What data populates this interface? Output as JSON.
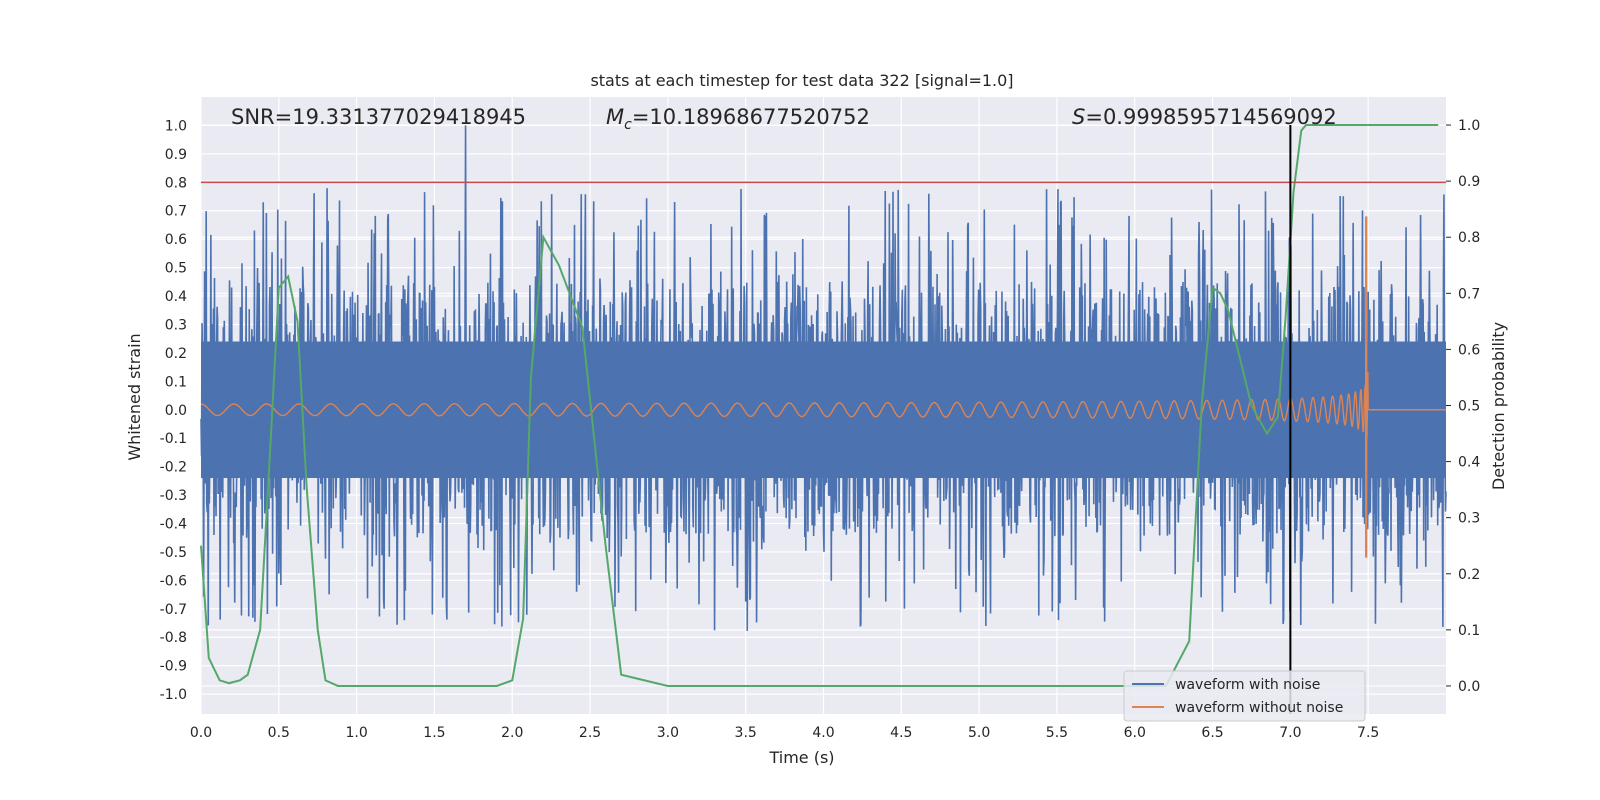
{
  "chart_data": {
    "type": "line",
    "title": "stats at each timestep for test data 322 [signal=1.0]",
    "xlabel": "Time (s)",
    "ylabel": "Whitened strain",
    "ylabel_right": "Detection probability",
    "xlim": [
      0.0,
      8.0
    ],
    "ylim": [
      -1.07,
      1.1
    ],
    "ylim_right": [
      -0.05,
      1.05
    ],
    "x_ticks": [
      "0.0",
      "0.5",
      "1.0",
      "1.5",
      "2.0",
      "2.5",
      "3.0",
      "3.5",
      "4.0",
      "4.5",
      "5.0",
      "5.5",
      "6.0",
      "6.5",
      "7.0",
      "7.5"
    ],
    "y_ticks": [
      "1.0",
      "0.9",
      "0.8",
      "0.7",
      "0.6",
      "0.5",
      "0.4",
      "0.3",
      "0.2",
      "0.1",
      "0.0",
      "-0.1",
      "-0.2",
      "-0.3",
      "-0.4",
      "-0.5",
      "-0.6",
      "-0.7",
      "-0.8",
      "-0.9",
      "-1.0"
    ],
    "y_right_ticks": [
      "1.0",
      "0.9",
      "0.8",
      "0.7",
      "0.6",
      "0.5",
      "0.4",
      "0.3",
      "0.2",
      "0.1",
      "0.0"
    ],
    "annotations": {
      "snr": "SNR=19.331377029418945",
      "mc_symbol": "M",
      "mc_sub": "c",
      "mc_value": "=10.18968677520752",
      "s_symbol": "S",
      "s_value": "=0.9998595714569092"
    },
    "threshold": {
      "value": 0.8,
      "axis": "left",
      "color": "#c44e52"
    },
    "vline_time": 7.0,
    "series": [
      {
        "name": "waveform with noise",
        "color": "#4c72b0",
        "kind": "noise",
        "t_end": 8.0,
        "typical_amplitude": 0.45,
        "peak": 1.0,
        "peak_time": 1.7
      },
      {
        "name": "waveform without noise",
        "color": "#dd8452",
        "kind": "chirp",
        "t_start": 0.0,
        "t_merge": 7.5,
        "initial_amplitude": 0.02,
        "peak": 0.68,
        "peak_min": -0.52
      },
      {
        "name": "detection probability",
        "color": "#55a868",
        "axis": "right",
        "t": [
          0.0,
          0.05,
          0.12,
          0.18,
          0.25,
          0.3,
          0.38,
          0.45,
          0.5,
          0.56,
          0.62,
          0.68,
          0.75,
          0.8,
          0.88,
          1.0,
          1.5,
          1.9,
          2.0,
          2.07,
          2.12,
          2.2,
          2.3,
          2.45,
          2.6,
          2.7,
          3.0,
          4.0,
          5.0,
          6.0,
          6.2,
          6.35,
          6.43,
          6.5,
          6.55,
          6.6,
          6.75,
          6.85,
          6.92,
          6.97,
          7.02,
          7.07,
          7.1,
          7.5,
          7.95
        ],
        "p": [
          0.25,
          0.05,
          0.01,
          0.005,
          0.01,
          0.02,
          0.1,
          0.45,
          0.71,
          0.73,
          0.65,
          0.35,
          0.1,
          0.01,
          0.0,
          0.0,
          0.0,
          0.0,
          0.01,
          0.12,
          0.55,
          0.8,
          0.75,
          0.64,
          0.25,
          0.02,
          0.0,
          0.0,
          0.0,
          0.0,
          0.0,
          0.08,
          0.5,
          0.71,
          0.7,
          0.67,
          0.5,
          0.45,
          0.48,
          0.66,
          0.88,
          0.99,
          1.0,
          1.0,
          1.0
        ]
      }
    ],
    "legend": {
      "placement": "bottom-right",
      "entries": [
        "waveform with noise",
        "waveform without noise"
      ]
    },
    "grid": true
  }
}
